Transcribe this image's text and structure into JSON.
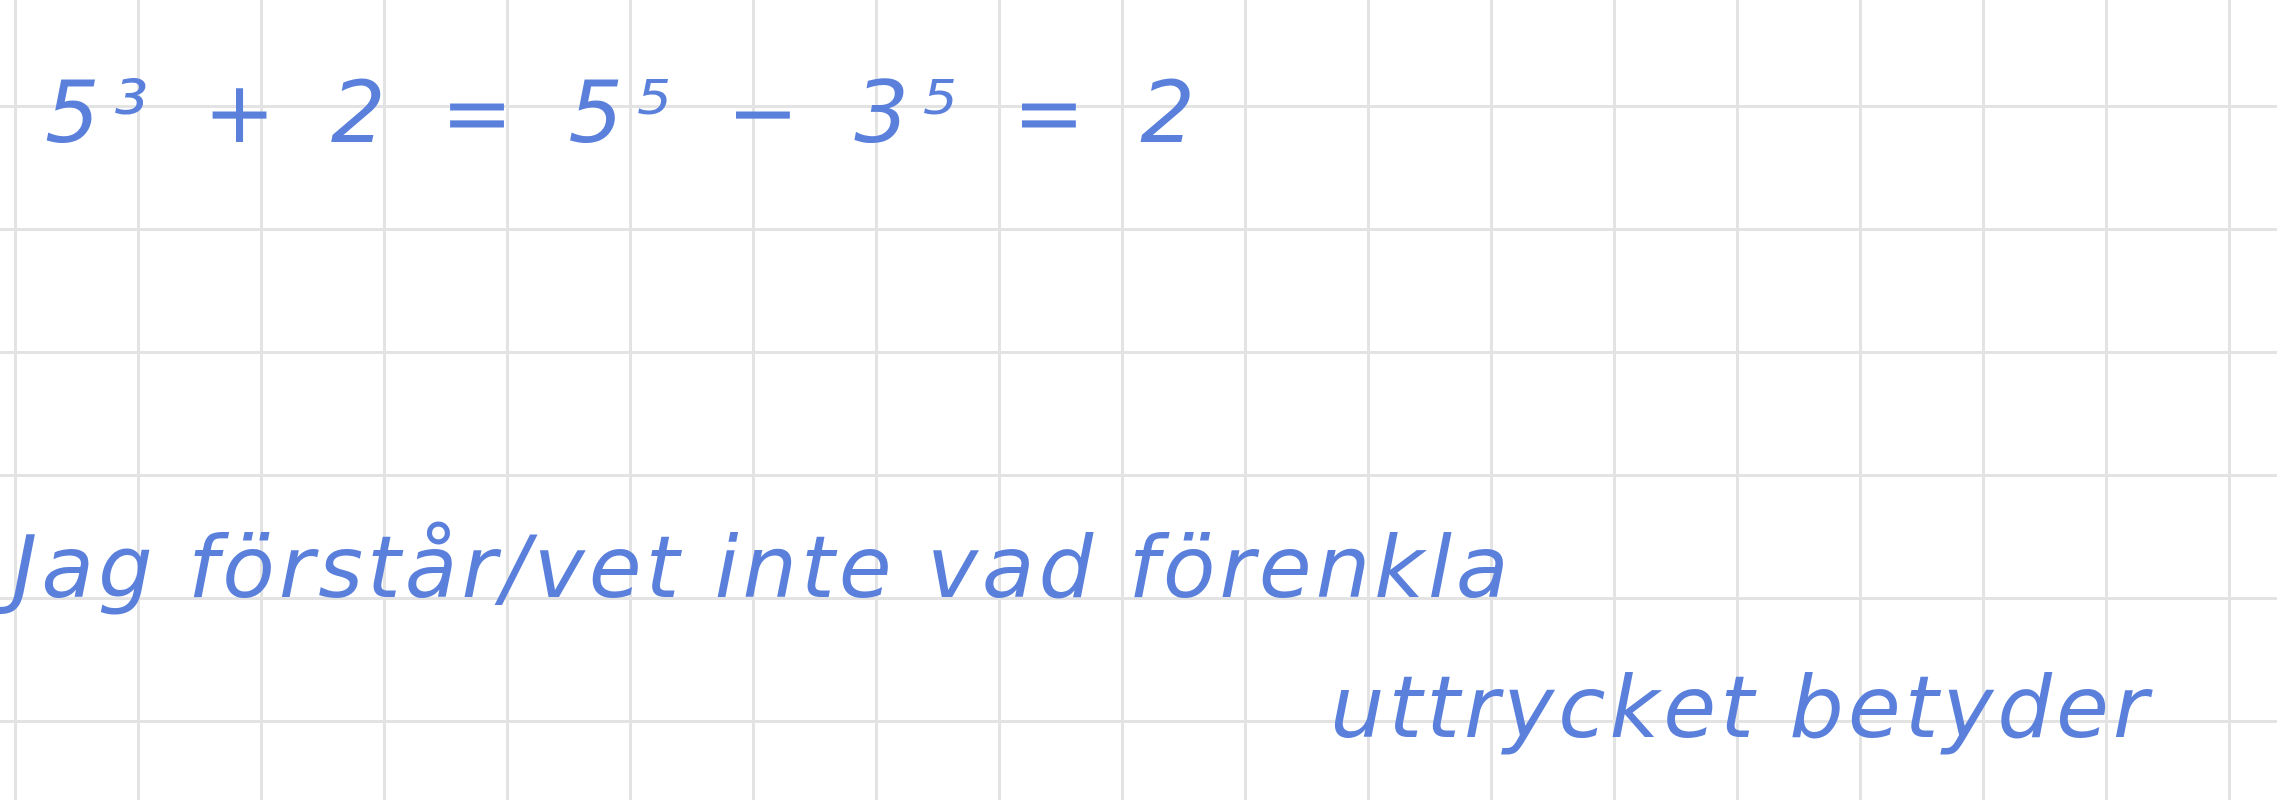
{
  "note": {
    "lines": [
      "5³ + 2 = 5⁵ − 3⁵ = 2",
      "Jag förstår/vet inte vad förenkla",
      "uttrycket betyder"
    ]
  }
}
